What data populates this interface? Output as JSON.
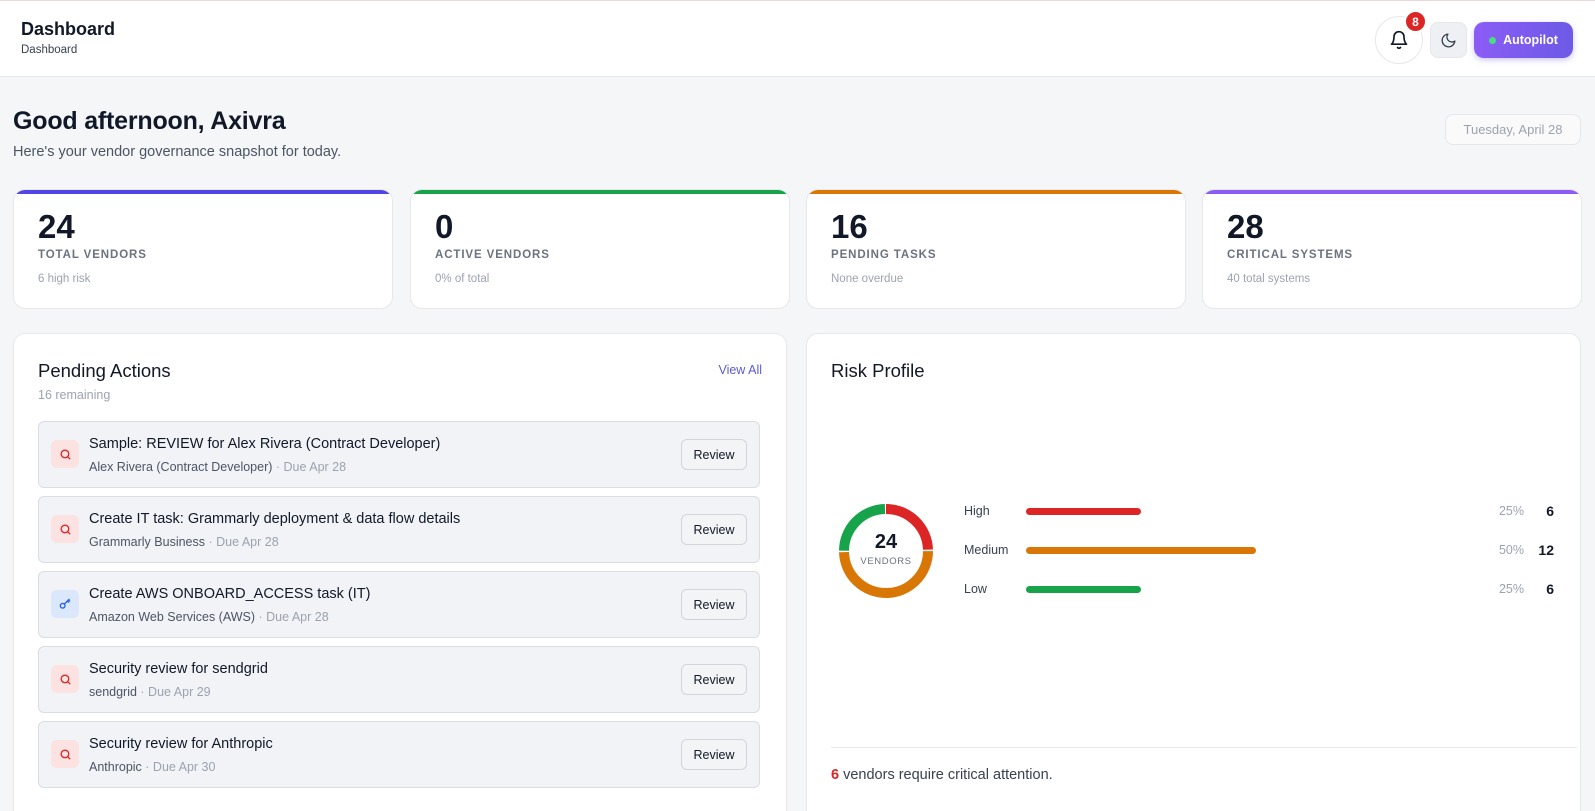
{
  "header": {
    "title": "Dashboard",
    "breadcrumb": "Dashboard",
    "notification_count": "8",
    "autopilot_label": "Autopilot"
  },
  "greeting": {
    "title": "Good afternoon, Axivra",
    "subtitle": "Here's your vendor governance snapshot for today.",
    "date": "Tuesday, April 28"
  },
  "stats": [
    {
      "value": "24",
      "label": "TOTAL VENDORS",
      "sub": "6 high risk",
      "color": "#4f46e5"
    },
    {
      "value": "0",
      "label": "ACTIVE VENDORS",
      "sub": "0% of total",
      "color": "#16a34a"
    },
    {
      "value": "16",
      "label": "PENDING TASKS",
      "sub": "None overdue",
      "color": "#d97706"
    },
    {
      "value": "28",
      "label": "CRITICAL SYSTEMS",
      "sub": "40 total systems",
      "color": "#8b5cf6"
    }
  ],
  "pending": {
    "title": "Pending Actions",
    "remaining": "16 remaining",
    "view_all": "View All",
    "review_label": "Review",
    "items": [
      {
        "title": "Sample: REVIEW for Alex Rivera (Contract Developer)",
        "who": "Alex Rivera (Contract Developer)",
        "due": " · Due Apr 28",
        "icon": "search-icon"
      },
      {
        "title": "Create IT task: Grammarly deployment & data flow details",
        "who": "Grammarly Business",
        "due": " · Due Apr 28",
        "icon": "search-icon"
      },
      {
        "title": "Create AWS ONBOARD_ACCESS task (IT)",
        "who": "Amazon Web Services (AWS)",
        "due": " · Due Apr 28",
        "icon": "key-icon"
      },
      {
        "title": "Security review for sendgrid",
        "who": "sendgrid",
        "due": " · Due Apr 29",
        "icon": "search-icon"
      },
      {
        "title": "Security review for Anthropic",
        "who": "Anthropic",
        "due": " · Due Apr 30",
        "icon": "search-icon"
      }
    ]
  },
  "risk": {
    "title": "Risk Profile",
    "total": "24",
    "total_label": "VENDORS",
    "levels": [
      {
        "name": "High",
        "percent": "25%",
        "count": "6",
        "fraction": 0.25,
        "color": "#dc2626"
      },
      {
        "name": "Medium",
        "percent": "50%",
        "count": "12",
        "fraction": 0.5,
        "color": "#d97706"
      },
      {
        "name": "Low",
        "percent": "25%",
        "count": "6",
        "fraction": 0.25,
        "color": "#16a34a"
      }
    ],
    "footer_count": "6",
    "footer_text": " vendors require critical attention."
  }
}
